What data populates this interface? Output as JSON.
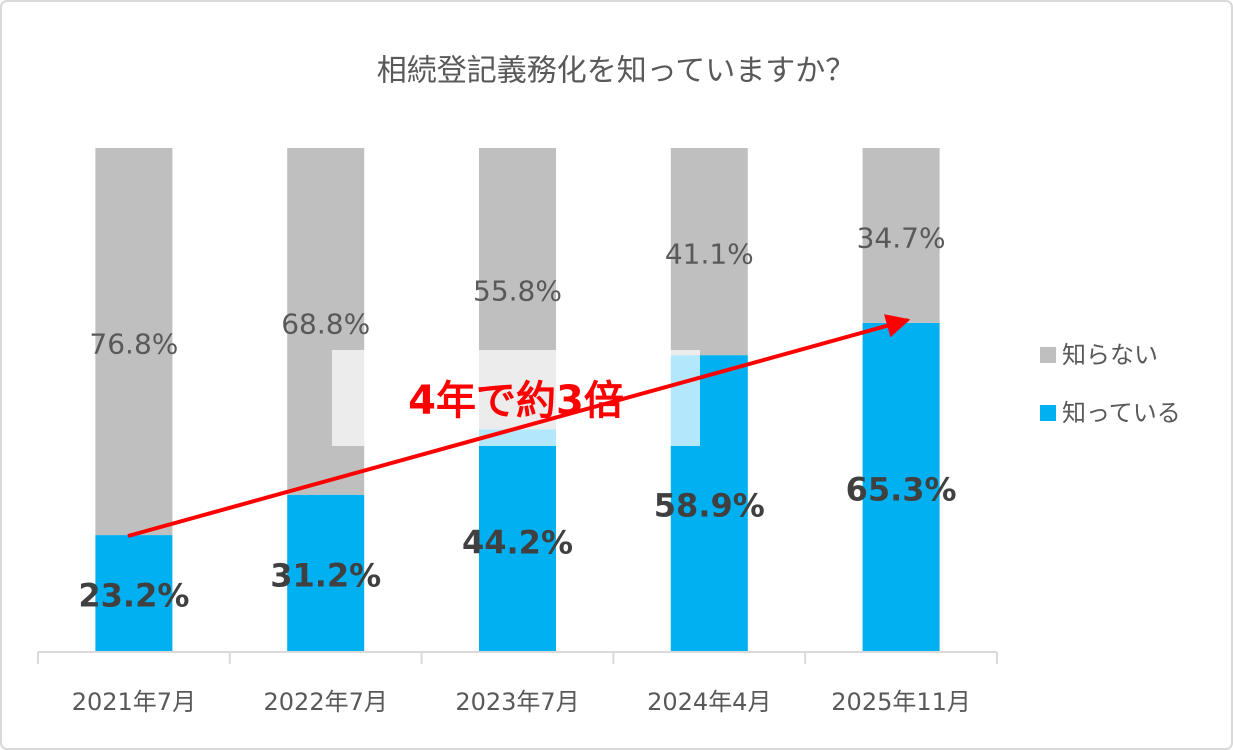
{
  "chart_data": {
    "type": "stacked_bar",
    "title": "相続登記義務化を知っていますか？",
    "categories": [
      "2021年7月",
      "2022年7月",
      "2023年7月",
      "2024年4月",
      "2025年11月"
    ],
    "series": [
      {
        "name": "知っている",
        "color": "#00b0f0",
        "values": [
          23.2,
          31.2,
          44.2,
          58.9,
          65.3
        ],
        "value_labels": [
          "23.2%",
          "31.2%",
          "44.2%",
          "58.9%",
          "65.3%"
        ]
      },
      {
        "name": "知らない",
        "color": "#bfbfbf",
        "values": [
          76.8,
          68.8,
          55.8,
          41.1,
          34.7
        ],
        "value_labels": [
          "76.8%",
          "68.8%",
          "55.8%",
          "41.1%",
          "34.7%"
        ]
      }
    ],
    "ylim": [
      0,
      100
    ],
    "annotation": "4年で約3倍"
  }
}
